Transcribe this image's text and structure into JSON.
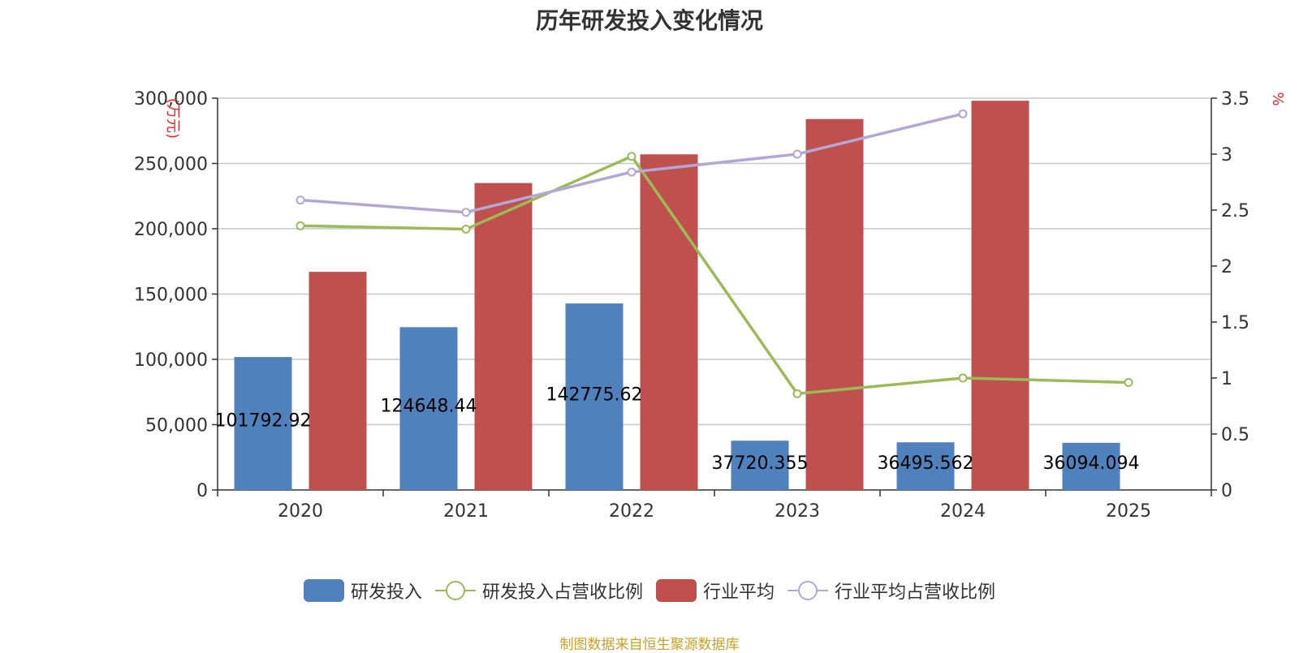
{
  "chart_data": {
    "type": "bar",
    "title": "历年研发投入变化情况",
    "categories": [
      "2020",
      "2021",
      "2022",
      "2023",
      "2024",
      "2025"
    ],
    "y_left": {
      "label": "(万元)",
      "ticks": [
        "0",
        "50,000",
        "100,000",
        "150,000",
        "200,000",
        "250,000",
        "300,000"
      ],
      "ylim": [
        0,
        300000
      ]
    },
    "y_right": {
      "label": "%",
      "ticks": [
        "0",
        "0.5",
        "1",
        "1.5",
        "2",
        "2.5",
        "3",
        "3.5"
      ],
      "ylim": [
        0,
        3.5
      ]
    },
    "series": [
      {
        "name": "研发投入",
        "type": "bar",
        "axis": "left",
        "color": "#4f81bd",
        "values": [
          101792.92,
          124648.44,
          142775.62,
          37720.355,
          36495.562,
          36094.094
        ],
        "labels": [
          "101792.92",
          "124648.44",
          "142775.62",
          "37720.355",
          "36495.562",
          "36094.094"
        ]
      },
      {
        "name": "研发投入占营收比例",
        "type": "line",
        "axis": "right",
        "color": "#9bbb59",
        "values": [
          2.36,
          2.33,
          2.98,
          0.86,
          1.0,
          0.96
        ]
      },
      {
        "name": "行业平均",
        "type": "bar",
        "axis": "left",
        "color": "#c0504d",
        "values": [
          167000,
          235000,
          257000,
          284000,
          298000,
          null
        ]
      },
      {
        "name": "行业平均占营收比例",
        "type": "line",
        "axis": "right",
        "color": "#b3a7d6",
        "values": [
          2.59,
          2.48,
          2.84,
          3.0,
          3.36,
          null
        ]
      }
    ],
    "grid": true,
    "legend_position": "bottom"
  },
  "source_note": "制图数据来自恒生聚源数据库"
}
